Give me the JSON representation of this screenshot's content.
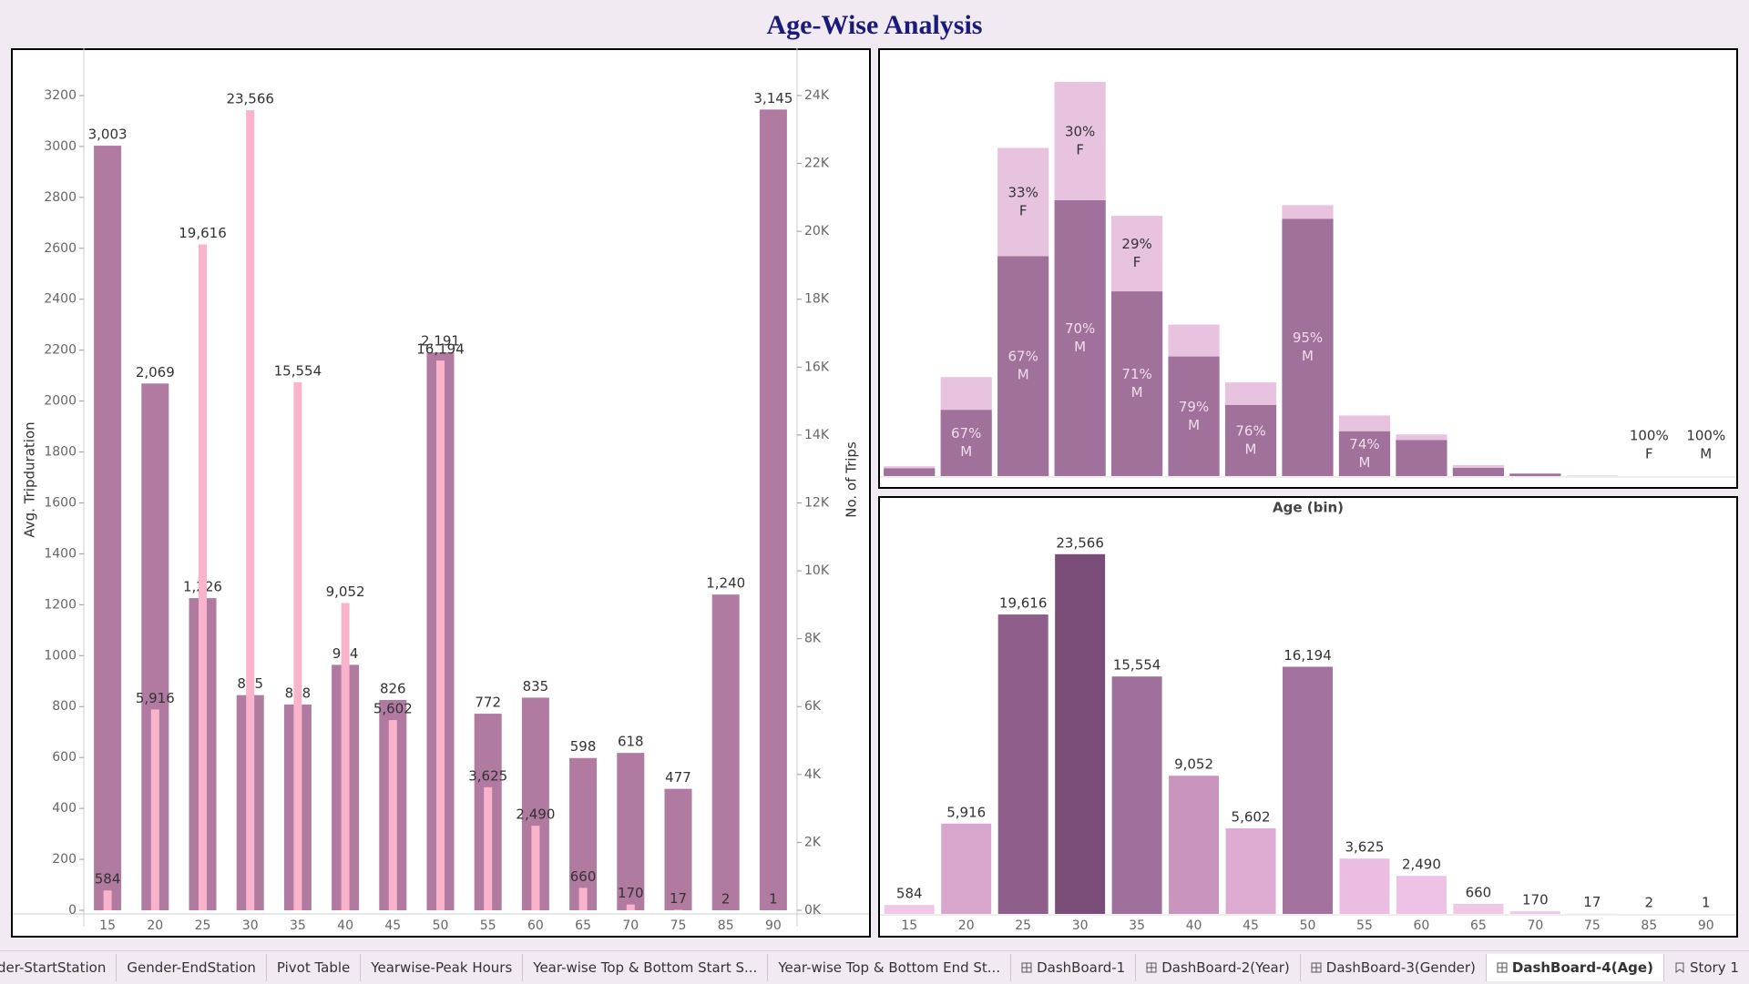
{
  "dashboard_title": "Age-Wise Analysis",
  "chart_data": [
    {
      "type": "combo",
      "categories": [
        "15",
        "20",
        "25",
        "30",
        "35",
        "40",
        "45",
        "50",
        "55",
        "60",
        "65",
        "70",
        "75",
        "85",
        "90"
      ],
      "ylabel": "Avg. Tripduration",
      "y2label": "No. of Trips",
      "ylim": [
        0,
        3350
      ],
      "yticks": [
        0,
        200,
        400,
        600,
        800,
        1000,
        1200,
        1400,
        1600,
        1800,
        2000,
        2200,
        2400,
        2600,
        2800,
        3000,
        3200
      ],
      "y2lim": [
        0,
        25125
      ],
      "y2ticks": [
        {
          "value": 0,
          "label": "0K"
        },
        {
          "value": 2000,
          "label": "2K"
        },
        {
          "value": 4000,
          "label": "4K"
        },
        {
          "value": 6000,
          "label": "6K"
        },
        {
          "value": 8000,
          "label": "8K"
        },
        {
          "value": 10000,
          "label": "10K"
        },
        {
          "value": 12000,
          "label": "12K"
        },
        {
          "value": 14000,
          "label": "14K"
        },
        {
          "value": 16000,
          "label": "16K"
        },
        {
          "value": 18000,
          "label": "18K"
        },
        {
          "value": 20000,
          "label": "20K"
        },
        {
          "value": 22000,
          "label": "22K"
        },
        {
          "value": 24000,
          "label": "24K"
        }
      ],
      "series": [
        {
          "color": "#b07aa1",
          "values": [
            3003,
            2069,
            1226,
            845,
            808,
            964,
            826,
            2191,
            772,
            835,
            598,
            618,
            477,
            1240,
            3145
          ],
          "value_labels": [
            "3,003",
            "2,069",
            "1,226",
            "845",
            "808",
            "964",
            "826",
            "2,191",
            "772",
            "835",
            "598",
            "618",
            "477",
            "1,240",
            "3,145"
          ]
        },
        {
          "color": "#f9b4cc",
          "axis": "y2",
          "values": [
            584,
            5916,
            19616,
            23566,
            15554,
            9052,
            5602,
            16194,
            3625,
            2490,
            660,
            170,
            17,
            2,
            1
          ],
          "value_labels": [
            "584",
            "5,916",
            "19,616",
            "23,566",
            "15,554",
            "9,052",
            "5,602",
            "16,194",
            "3,625",
            "2,490",
            "660",
            "170",
            "17",
            "2",
            "1"
          ]
        }
      ]
    },
    {
      "type": "stacked_bar",
      "xlabel": "Age (bin)",
      "ylim": [
        0,
        24540
      ],
      "categories": [
        "15",
        "20",
        "25",
        "30",
        "35",
        "40",
        "45",
        "50",
        "55",
        "60",
        "65",
        "70",
        "75",
        "85",
        "90"
      ],
      "series": [
        {
          "name": "M",
          "color": "#a0719a",
          "label_color": "#f3dcef",
          "values": [
            467,
            3964,
            13143,
            16496,
            11043,
            7151,
            4258,
            15384,
            2683,
            2150,
            500,
            150,
            12,
            0,
            1
          ],
          "share_labels": [
            null,
            "67%",
            "67%",
            "70%",
            "71%",
            "79%",
            "76%",
            "95%",
            "74%",
            null,
            null,
            null,
            null,
            null,
            "100%"
          ]
        },
        {
          "name": "F",
          "color": "#e8c3e0",
          "label_color": "#333333",
          "values": [
            117,
            1952,
            6473,
            7070,
            4511,
            1901,
            1344,
            810,
            942,
            340,
            160,
            20,
            5,
            2,
            0
          ],
          "share_labels": [
            null,
            null,
            "33%",
            "30%",
            "29%",
            null,
            null,
            null,
            null,
            null,
            null,
            null,
            null,
            "100%",
            null
          ]
        }
      ]
    },
    {
      "type": "bar",
      "ylim": [
        0,
        26000
      ],
      "categories": [
        "15",
        "20",
        "25",
        "30",
        "35",
        "40",
        "45",
        "50",
        "55",
        "60",
        "65",
        "70",
        "75",
        "85",
        "90"
      ],
      "values": [
        584,
        5916,
        19616,
        23566,
        15554,
        9052,
        5602,
        16194,
        3625,
        2490,
        660,
        170,
        17,
        2,
        1
      ],
      "value_labels": [
        "584",
        "5,916",
        "19,616",
        "23,566",
        "15,554",
        "9,052",
        "5,602",
        "16,194",
        "3,625",
        "2,490",
        "660",
        "170",
        "17",
        "2",
        "1"
      ],
      "colors": [
        "#f0c8e6",
        "#d8a6cc",
        "#8e5f8a",
        "#7a4d78",
        "#a0709c",
        "#c994bd",
        "#ddaad2",
        "#a3729e",
        "#ecbde2",
        "#eec2e4",
        "#f0c8e6",
        "#f0c8e6",
        "#f0c8e6",
        "#f0c8e6",
        "#f0c8e6"
      ]
    }
  ],
  "tabs": [
    {
      "label": "der-StartStation",
      "kind": "sheet",
      "active": false
    },
    {
      "label": "Gender-EndStation",
      "kind": "sheet",
      "active": false
    },
    {
      "label": "Pivot Table",
      "kind": "sheet",
      "active": false
    },
    {
      "label": "Yearwise-Peak Hours",
      "kind": "sheet",
      "active": false
    },
    {
      "label": "Year-wise Top & Bottom Start S...",
      "kind": "sheet",
      "active": false
    },
    {
      "label": "Year-wise Top & Bottom End St...",
      "kind": "sheet",
      "active": false
    },
    {
      "label": "DashBoard-1",
      "kind": "dashboard",
      "active": false
    },
    {
      "label": "DashBoard-2(Year)",
      "kind": "dashboard",
      "active": false
    },
    {
      "label": "DashBoard-3(Gender)",
      "kind": "dashboard",
      "active": false
    },
    {
      "label": "DashBoard-4(Age)",
      "kind": "dashboard",
      "active": true
    },
    {
      "label": "Story 1",
      "kind": "story",
      "active": false
    }
  ]
}
